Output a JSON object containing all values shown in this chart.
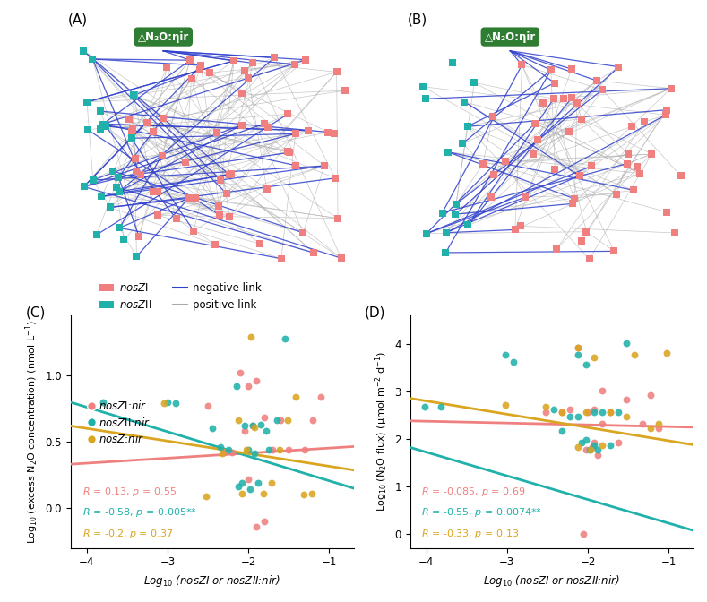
{
  "fig_width": 7.89,
  "fig_height": 6.72,
  "background_color": "#ffffff",
  "node_color_nosZI": "#F08080",
  "node_color_nosZII": "#20B2AA",
  "edge_color_negative": "#3040CC",
  "edge_color_positive": "#AAAAAA",
  "box_color": "#2E7D32",
  "box_text": "△N₂O:ηir",
  "scatter_color_nosZI": "#F08080",
  "scatter_color_nosZII": "#20B2AA",
  "scatter_color_nosZ": "#DAA520",
  "C_xlim": [
    -4.2,
    -0.7
  ],
  "C_ylim": [
    -0.3,
    1.45
  ],
  "C_xticks": [
    -4,
    -3,
    -2,
    -1
  ],
  "C_yticks": [
    0.0,
    0.5,
    1.0
  ],
  "C_xlabel": "Log$_{10}$ (nosZI or nosZII:nir)",
  "C_ylabel": "Log$_{10}$ (excess N$_2$O concentration) (nmol L$^{-1}$)",
  "D_xlim": [
    -4.2,
    -0.7
  ],
  "D_ylim": [
    -0.3,
    4.6
  ],
  "D_xticks": [
    -4,
    -3,
    -2,
    -1
  ],
  "D_yticks": [
    0,
    1,
    2,
    3,
    4
  ],
  "D_xlabel": "Log$_{10}$ (nosZI or nosZII:nir)",
  "D_ylabel": "Log$_{10}$ (N$_2$O flux) (μmol m$^{-2}$ d$^{-1}$)",
  "C_stats": [
    {
      "R": 0.13,
      "p": "0.55",
      "slope": 0.038,
      "intercept": 0.49
    },
    {
      "R": -0.58,
      "p": "0.005**·",
      "slope": -0.185,
      "intercept": 0.02
    },
    {
      "R": -0.2,
      "p": "0.37",
      "slope": -0.095,
      "intercept": 0.22
    }
  ],
  "D_stats": [
    {
      "R": -0.085,
      "p": "0.69",
      "slope": -0.038,
      "intercept": 2.22
    },
    {
      "R": -0.55,
      "p": "0.0074**",
      "slope": -0.5,
      "intercept": -0.28
    },
    {
      "R": -0.33,
      "p": "0.13",
      "slope": -0.28,
      "intercept": 1.68
    }
  ],
  "C_nosZI_x": [
    -2.0,
    -2.1,
    -1.9,
    -1.8,
    -2.2,
    -1.5,
    -1.6,
    -1.7,
    -1.3,
    -1.2,
    -1.1,
    -2.5,
    -2.3,
    -2.0,
    -1.9,
    -1.8,
    -1.95,
    -2.05
  ],
  "C_nosZI_y": [
    0.92,
    1.02,
    0.96,
    0.68,
    0.42,
    0.44,
    0.66,
    0.44,
    0.44,
    0.66,
    0.84,
    0.77,
    0.42,
    0.22,
    -0.14,
    -0.1,
    0.62,
    0.58
  ],
  "C_nosZII_x": [
    -3.0,
    -2.9,
    -2.15,
    -2.05,
    -1.95,
    -1.85,
    -1.75,
    -1.65,
    -2.25,
    -2.35,
    -2.45,
    -3.8,
    -1.55,
    -2.0,
    -1.92,
    -2.12,
    -2.08,
    -1.98,
    -1.88,
    -1.78
  ],
  "C_nosZII_y": [
    0.8,
    0.79,
    0.92,
    0.62,
    0.62,
    0.63,
    0.44,
    0.66,
    0.44,
    0.46,
    0.6,
    0.8,
    1.28,
    0.44,
    0.41,
    0.16,
    0.19,
    0.14,
    0.19,
    0.58
  ],
  "C_nosZ_x": [
    -3.05,
    -2.12,
    -2.02,
    -1.92,
    -1.72,
    -1.52,
    -1.42,
    -2.32,
    -1.22,
    -2.52,
    -1.82,
    -2.08,
    -1.97,
    -1.62,
    -1.32
  ],
  "C_nosZ_y": [
    0.79,
    0.66,
    0.44,
    0.61,
    0.19,
    0.66,
    0.84,
    0.41,
    0.11,
    0.09,
    0.11,
    0.11,
    1.29,
    0.44,
    0.1
  ],
  "D_nosZI_x": [
    -2.0,
    -2.12,
    -1.92,
    -1.82,
    -2.22,
    -1.52,
    -1.62,
    -1.72,
    -1.32,
    -1.22,
    -1.12,
    -2.52,
    -2.32,
    -2.02,
    -1.92,
    -1.82,
    -2.05,
    -1.88,
    -1.95
  ],
  "D_nosZI_y": [
    2.56,
    3.92,
    2.62,
    3.02,
    2.62,
    2.82,
    1.92,
    2.56,
    2.32,
    2.92,
    2.22,
    2.56,
    2.56,
    1.77,
    1.92,
    2.32,
    0.0,
    1.66,
    1.82
  ],
  "D_nosZII_x": [
    -3.02,
    -2.92,
    -2.12,
    -2.02,
    -1.92,
    -1.82,
    -1.72,
    -1.62,
    -2.22,
    -2.32,
    -2.42,
    -3.82,
    -1.52,
    -2.02,
    -1.92,
    -2.12,
    -2.08,
    -1.98,
    -1.88,
    -4.02
  ],
  "D_nosZII_y": [
    3.77,
    3.62,
    3.77,
    3.57,
    2.57,
    2.57,
    1.87,
    2.57,
    2.47,
    2.17,
    2.62,
    2.67,
    4.02,
    1.97,
    1.87,
    2.47,
    1.92,
    1.77,
    1.77,
    2.67
  ],
  "D_nosZ_x": [
    -3.02,
    -2.12,
    -2.02,
    -1.92,
    -1.72,
    -1.52,
    -1.42,
    -2.32,
    -1.22,
    -2.52,
    -1.82,
    -2.12,
    -1.97,
    -1.12,
    -1.02
  ],
  "D_nosZ_y": [
    2.72,
    3.92,
    2.57,
    3.72,
    2.57,
    2.47,
    3.77,
    2.57,
    2.22,
    2.67,
    1.87,
    1.82,
    1.77,
    2.32,
    3.82
  ]
}
